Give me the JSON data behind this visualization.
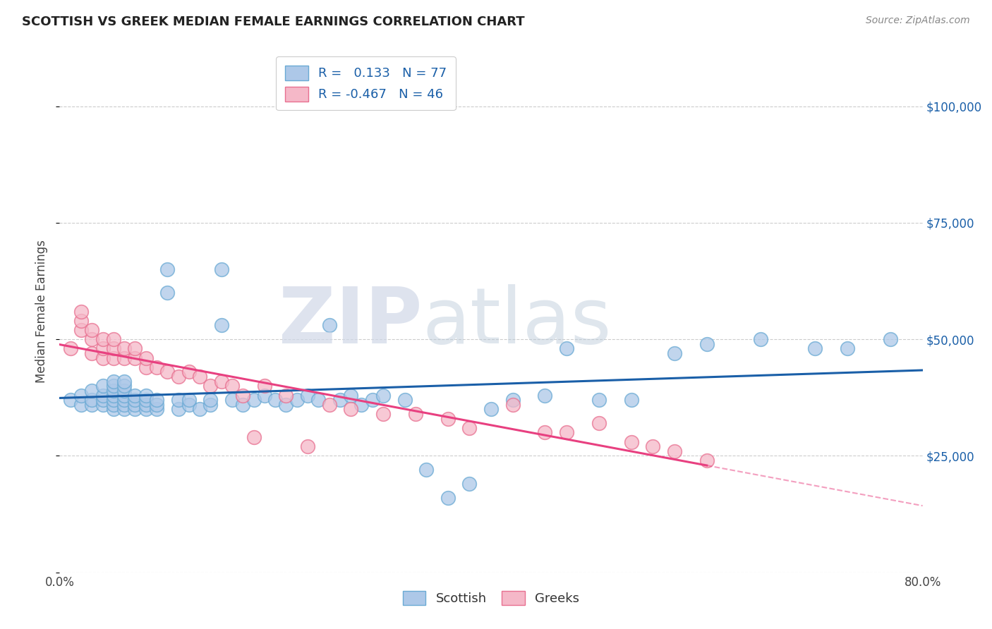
{
  "title": "SCOTTISH VS GREEK MEDIAN FEMALE EARNINGS CORRELATION CHART",
  "source": "Source: ZipAtlas.com",
  "ylabel": "Median Female Earnings",
  "ytick_values": [
    25000,
    50000,
    75000,
    100000
  ],
  "xlim": [
    0.0,
    0.8
  ],
  "ylim": [
    0,
    112000
  ],
  "scottish_color": "#adc8e8",
  "scottish_edge_color": "#6aaad4",
  "greek_color": "#f5b8c8",
  "greek_edge_color": "#e87090",
  "scottish_trend_color": "#1a5fa8",
  "greek_trend_color": "#e84080",
  "background_color": "#ffffff",
  "grid_color": "#cccccc",
  "scottish_x": [
    0.01,
    0.02,
    0.02,
    0.03,
    0.03,
    0.03,
    0.04,
    0.04,
    0.04,
    0.04,
    0.05,
    0.05,
    0.05,
    0.05,
    0.05,
    0.05,
    0.05,
    0.06,
    0.06,
    0.06,
    0.06,
    0.06,
    0.06,
    0.06,
    0.07,
    0.07,
    0.07,
    0.07,
    0.08,
    0.08,
    0.08,
    0.08,
    0.09,
    0.09,
    0.09,
    0.1,
    0.1,
    0.11,
    0.11,
    0.12,
    0.12,
    0.13,
    0.14,
    0.14,
    0.15,
    0.15,
    0.16,
    0.17,
    0.18,
    0.19,
    0.2,
    0.21,
    0.22,
    0.23,
    0.24,
    0.25,
    0.26,
    0.27,
    0.28,
    0.29,
    0.3,
    0.32,
    0.34,
    0.36,
    0.38,
    0.4,
    0.42,
    0.45,
    0.47,
    0.5,
    0.53,
    0.57,
    0.6,
    0.65,
    0.7,
    0.73,
    0.77
  ],
  "scottish_y": [
    37000,
    36000,
    38000,
    36000,
    37000,
    39000,
    36000,
    37000,
    38000,
    40000,
    35000,
    36000,
    37000,
    38000,
    39000,
    40000,
    41000,
    35000,
    36000,
    37000,
    38000,
    39000,
    40000,
    41000,
    35000,
    36000,
    37000,
    38000,
    35000,
    36000,
    37000,
    38000,
    35000,
    36000,
    37000,
    60000,
    65000,
    35000,
    37000,
    36000,
    37000,
    35000,
    36000,
    37000,
    53000,
    65000,
    37000,
    36000,
    37000,
    38000,
    37000,
    36000,
    37000,
    38000,
    37000,
    53000,
    37000,
    38000,
    36000,
    37000,
    38000,
    37000,
    22000,
    16000,
    19000,
    35000,
    37000,
    38000,
    48000,
    37000,
    37000,
    47000,
    49000,
    50000,
    48000,
    48000,
    50000
  ],
  "greek_x": [
    0.01,
    0.02,
    0.02,
    0.02,
    0.03,
    0.03,
    0.03,
    0.04,
    0.04,
    0.04,
    0.05,
    0.05,
    0.05,
    0.06,
    0.06,
    0.07,
    0.07,
    0.08,
    0.08,
    0.09,
    0.1,
    0.11,
    0.12,
    0.13,
    0.14,
    0.15,
    0.16,
    0.17,
    0.18,
    0.19,
    0.21,
    0.23,
    0.25,
    0.27,
    0.3,
    0.33,
    0.36,
    0.38,
    0.42,
    0.45,
    0.47,
    0.5,
    0.53,
    0.55,
    0.57,
    0.6
  ],
  "greek_y": [
    48000,
    52000,
    54000,
    56000,
    47000,
    50000,
    52000,
    46000,
    48000,
    50000,
    46000,
    48000,
    50000,
    46000,
    48000,
    46000,
    48000,
    44000,
    46000,
    44000,
    43000,
    42000,
    43000,
    42000,
    40000,
    41000,
    40000,
    38000,
    29000,
    40000,
    38000,
    27000,
    36000,
    35000,
    34000,
    34000,
    33000,
    31000,
    36000,
    30000,
    30000,
    32000,
    28000,
    27000,
    26000,
    24000
  ]
}
